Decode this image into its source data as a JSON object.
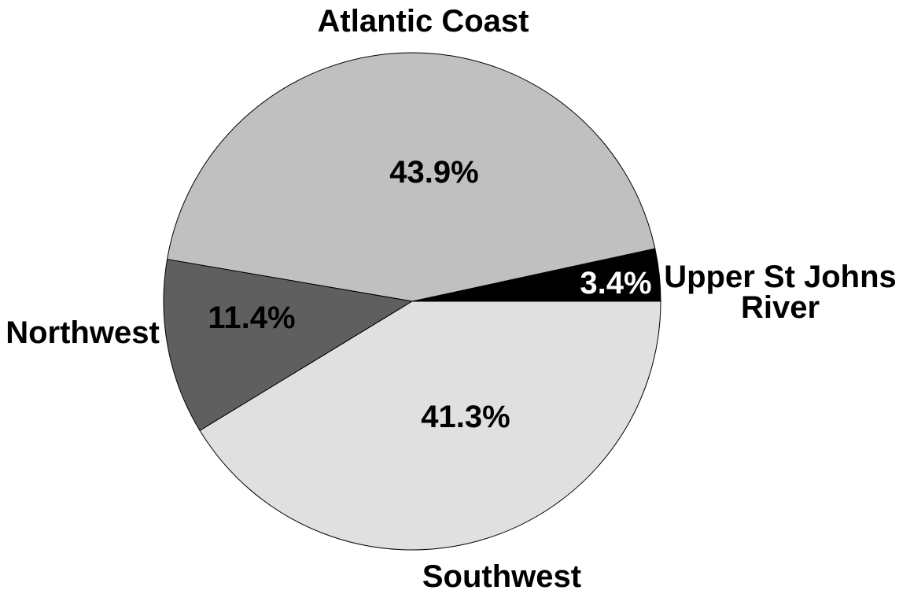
{
  "chart_data": {
    "type": "pie",
    "slices": [
      {
        "label": "Upper St Johns River",
        "value": 3.4,
        "value_label": "3.4%",
        "color": "#000000",
        "label_color": "#ffffff"
      },
      {
        "label": "Atlantic Coast",
        "value": 43.9,
        "value_label": "43.9%",
        "color": "#c0c0c0",
        "label_color": "#000000"
      },
      {
        "label": "Northwest",
        "value": 11.4,
        "value_label": "11.4%",
        "color": "#5f5f5f",
        "label_color": "#000000"
      },
      {
        "label": "Southwest",
        "value": 41.3,
        "value_label": "41.3%",
        "color": "#e0e0e0",
        "label_color": "#000000"
      }
    ],
    "start_angle_deg": 0,
    "direction": "counterclockwise",
    "legend": "none"
  }
}
